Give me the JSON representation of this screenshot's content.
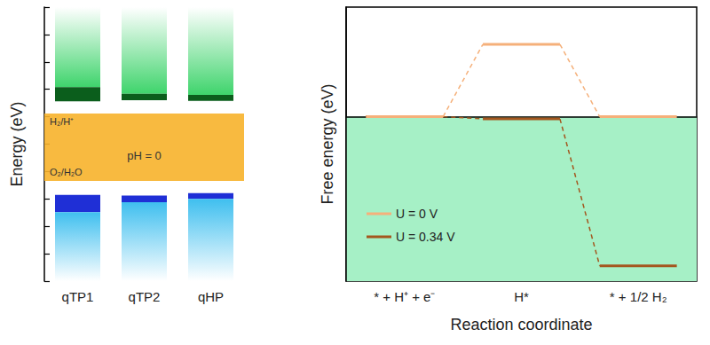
{
  "chart_data": [
    {
      "type": "band_diagram",
      "y_label": "Energy (eV)",
      "categories": [
        "qTP1",
        "qTP2",
        "qHP"
      ],
      "ylim": [
        -7.5,
        -2.5
      ],
      "yticks": [
        -7.5,
        -7,
        -6.5,
        -6,
        -5.5,
        -5,
        -4.5,
        -4,
        -3.5,
        -3,
        -2.5
      ],
      "tick_labels": "x",
      "cbm": {
        "color": "#0b5e1c",
        "fill_color": "#3fd46c",
        "low": [
          -4.22,
          -4.2,
          -4.21
        ],
        "high": [
          -3.96,
          -4.08,
          -4.1
        ]
      },
      "vbm": {
        "color": "#1f2fd6",
        "fill_color": "#3fbfef",
        "low": [
          -6.24,
          -6.06,
          -6.0
        ],
        "high": [
          -5.925,
          -5.94,
          -5.895
        ]
      },
      "levels": [
        {
          "label": "H₂/H⁺",
          "value": -4.44
        },
        {
          "label": "O₂/H₂O",
          "value": -5.67
        }
      ],
      "band_label": "pH = 0",
      "band_color": "#f7b32b"
    },
    {
      "type": "free_energy",
      "y_label": "Free energy (eV)",
      "x_label": "Reaction coordinate",
      "categories": [
        "* + H⁺ + e⁻",
        "H*",
        "* + 1/2 H₂"
      ],
      "ylim": [
        -0.75,
        0.5
      ],
      "tick_labels": "x",
      "legend": "lower left",
      "line_style": "dashed",
      "shaded_range": [
        -0.75,
        0
      ],
      "shade_color": "#a6f0c6",
      "series": [
        {
          "name": "U = 0 V",
          "color": "#f5b07a",
          "values": [
            0,
            0.33,
            0
          ]
        },
        {
          "name": "U = 0.34 V",
          "color": "#a4561e",
          "values": [
            0,
            -0.01,
            -0.68
          ]
        }
      ]
    }
  ]
}
